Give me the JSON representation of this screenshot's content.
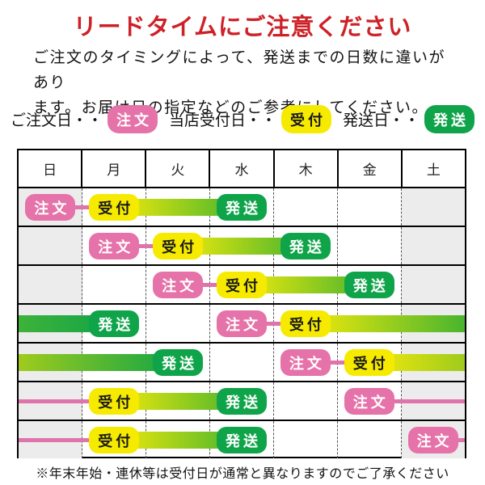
{
  "title": "リードタイムにご注意ください",
  "intro": {
    "line1": "ご注文のタイミングによって、発送までの日数に違いがあり",
    "line2": "ます。お届け日の指定などのご参考にしてください。"
  },
  "legend": {
    "items": [
      {
        "label": "ご注文日・・",
        "badge": "order"
      },
      {
        "label": "当店受付日・・",
        "badge": "receipt"
      },
      {
        "label": "発送日・・",
        "badge": "ship"
      }
    ]
  },
  "badge_types": {
    "order": {
      "label": "注文",
      "bg": "#e572a8",
      "fg": "#ffffff"
    },
    "receipt": {
      "label": "受付",
      "bg": "#f6eb00",
      "fg": "#1a1a1a"
    },
    "ship": {
      "label": "発送",
      "bg": "#10a44a",
      "fg": "#ffffff"
    }
  },
  "colors": {
    "title_red": "#ce2127",
    "weekend_bg": "#ececec",
    "pink_line": "#de74ab",
    "grad_yellow": "#f2ea0b",
    "grad_green": "#12a546"
  },
  "calendar": {
    "day_headers": [
      "日",
      "月",
      "火",
      "水",
      "木",
      "金",
      "土"
    ],
    "weekend_cols": [
      0,
      6
    ],
    "rows": [
      {
        "badges": [
          {
            "col": 0,
            "type": "order"
          },
          {
            "col": 1,
            "type": "receipt"
          },
          {
            "col": 3,
            "type": "ship"
          }
        ],
        "links": [
          {
            "from": 0,
            "to": 1
          }
        ],
        "bars": [
          {
            "from": 1,
            "to": 3,
            "c1": "#f2ea0b",
            "c2": "#49b52e"
          }
        ]
      },
      {
        "badges": [
          {
            "col": 1,
            "type": "order"
          },
          {
            "col": 2,
            "type": "receipt"
          },
          {
            "col": 4,
            "type": "ship"
          }
        ],
        "links": [
          {
            "from": 1,
            "to": 2
          }
        ],
        "bars": [
          {
            "from": 2,
            "to": 4,
            "c1": "#f2ea0b",
            "c2": "#49b52e"
          }
        ]
      },
      {
        "badges": [
          {
            "col": 2,
            "type": "order"
          },
          {
            "col": 3,
            "type": "receipt"
          },
          {
            "col": 5,
            "type": "ship"
          }
        ],
        "links": [
          {
            "from": 2,
            "to": 3
          }
        ],
        "bars": [
          {
            "from": 3,
            "to": 5,
            "c1": "#f2ea0b",
            "c2": "#49b52e"
          }
        ]
      },
      {
        "badges": [
          {
            "col": 1,
            "type": "ship"
          },
          {
            "col": 3,
            "type": "order"
          },
          {
            "col": 4,
            "type": "receipt"
          }
        ],
        "links": [
          {
            "from": 3,
            "to": 4
          }
        ],
        "bars": [
          {
            "from": "edge",
            "to": 1,
            "c1": "#3eb23a",
            "c2": "#12a546"
          },
          {
            "from": 4,
            "to": "edge",
            "c1": "#f2ea0b",
            "c2": "#49b52e"
          }
        ]
      },
      {
        "badges": [
          {
            "col": 2,
            "type": "ship"
          },
          {
            "col": 4,
            "type": "order"
          },
          {
            "col": 5,
            "type": "receipt"
          }
        ],
        "links": [
          {
            "from": 4,
            "to": 5
          }
        ],
        "bars": [
          {
            "from": "edge",
            "to": 2,
            "c1": "#9fcb1d",
            "c2": "#12a546"
          },
          {
            "from": 5,
            "to": "edge",
            "c1": "#f2ea0b",
            "c2": "#9fcb1d"
          }
        ]
      },
      {
        "badges": [
          {
            "col": 1,
            "type": "receipt"
          },
          {
            "col": 3,
            "type": "ship"
          },
          {
            "col": 5,
            "type": "order"
          }
        ],
        "links": [
          {
            "from": "edge",
            "to": 1
          },
          {
            "from": 5,
            "to": "edge"
          }
        ],
        "bars": [
          {
            "from": 1,
            "to": 3,
            "c1": "#f2ea0b",
            "c2": "#49b52e"
          }
        ]
      },
      {
        "badges": [
          {
            "col": 1,
            "type": "receipt"
          },
          {
            "col": 3,
            "type": "ship"
          },
          {
            "col": 6,
            "type": "order"
          }
        ],
        "links": [
          {
            "from": "edge",
            "to": 1
          },
          {
            "from": 6,
            "to": "edge"
          }
        ],
        "bars": [
          {
            "from": 1,
            "to": 3,
            "c1": "#f2ea0b",
            "c2": "#49b52e"
          }
        ]
      }
    ]
  },
  "footer": "※年末年始・連休等は受付日が通常と異なりますのでご了承ください"
}
